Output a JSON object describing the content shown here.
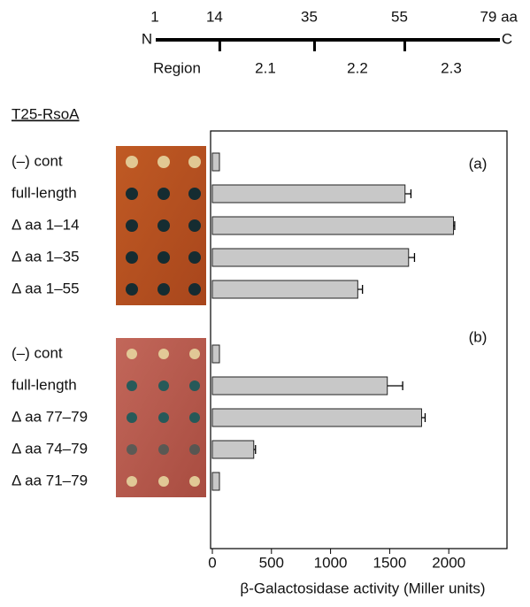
{
  "diagram": {
    "ends": [
      "N",
      "C"
    ],
    "positions": [
      1,
      14,
      35,
      55,
      {
        "value": 79,
        "label": "79 aa"
      }
    ],
    "region_label": "Region",
    "regions": [
      "2.1",
      "2.2",
      "2.3"
    ],
    "construct": "T25-RsoA"
  },
  "chart_data": {
    "type": "bar",
    "orientation": "horizontal",
    "color": "#c8c8c8",
    "xlabel": "β-Galactosidase activity (Miller units)",
    "xlim": [
      0,
      2500
    ],
    "xticks": [
      0,
      500,
      1000,
      1500,
      2000
    ],
    "panels": [
      {
        "label": "(a)",
        "categories": [
          "(–) cont",
          "full-length",
          "Δ aa 1–14",
          "Δ aa 1–35",
          "Δ aa 1–55"
        ],
        "values": [
          60,
          1630,
          2040,
          1660,
          1230
        ],
        "errors": [
          null,
          50,
          10,
          50,
          40
        ]
      },
      {
        "label": "(b)",
        "categories": [
          "(–) cont",
          "full-length",
          "Δ aa 77–79",
          "Δ aa 74–79",
          "Δ aa 71–79"
        ],
        "values": [
          60,
          1480,
          1770,
          350,
          60
        ],
        "errors": [
          null,
          130,
          30,
          15,
          null
        ]
      }
    ]
  }
}
